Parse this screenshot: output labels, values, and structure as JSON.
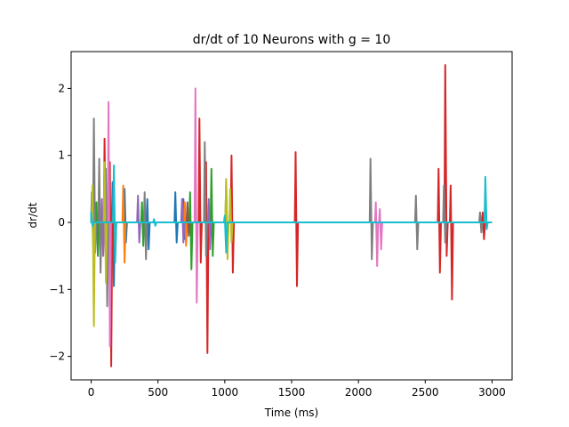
{
  "chart_data": {
    "type": "line",
    "title": "dr/dt of 10 Neurons with g = 10",
    "xlabel": "Time (ms)",
    "ylabel": "dr/dt",
    "xlim": [
      -150,
      3150
    ],
    "ylim": [
      -2.35,
      2.55
    ],
    "xticks": [
      0,
      500,
      1000,
      1500,
      2000,
      2500,
      3000
    ],
    "xtick_labels": [
      "0",
      "500",
      "1000",
      "1500",
      "2000",
      "2500",
      "3000"
    ],
    "yticks": [
      -2,
      -1,
      0,
      1,
      2
    ],
    "ytick_labels": [
      "−2",
      "−1",
      "0",
      "1",
      "2"
    ],
    "grid": false,
    "legend": "none",
    "series": [
      {
        "color": "#1f77b4",
        "bursts": [
          [
            5,
            0.45,
            -0.35
          ],
          [
            160,
            0.6,
            -0.95
          ],
          [
            250,
            0.5,
            -0.3
          ],
          [
            420,
            0.35,
            -0.4
          ],
          [
            630,
            0.45,
            -0.3
          ],
          [
            690,
            0.35,
            -0.25
          ]
        ]
      },
      {
        "color": "#ff7f0e",
        "bursts": [
          [
            10,
            0.5,
            -0.35
          ],
          [
            170,
            0.55,
            -0.5
          ],
          [
            240,
            0.55,
            -0.6
          ],
          [
            700,
            0.3,
            -0.35
          ]
        ]
      },
      {
        "color": "#2ca02c",
        "bursts": [
          [
            40,
            0.3,
            -0.5
          ],
          [
            380,
            0.3,
            -0.35
          ],
          [
            740,
            0.45,
            -0.7
          ],
          [
            900,
            0.8,
            -0.5
          ],
          [
            1010,
            0.6,
            -0.4
          ]
        ]
      },
      {
        "color": "#d62728",
        "bursts": [
          [
            100,
            1.25,
            -0.6
          ],
          [
            140,
            0.9,
            -2.15
          ],
          [
            810,
            1.55,
            -0.6
          ],
          [
            860,
            0.9,
            -1.95
          ],
          [
            1050,
            1.0,
            -0.75
          ],
          [
            1530,
            1.05,
            -0.95
          ],
          [
            2600,
            0.8,
            -0.75
          ],
          [
            2650,
            2.35,
            -0.5
          ],
          [
            2690,
            0.55,
            -1.15
          ],
          [
            2930,
            0.15,
            -0.25
          ]
        ]
      },
      {
        "color": "#9467bd",
        "bursts": [
          [
            80,
            0.35,
            -0.5
          ],
          [
            350,
            0.4,
            -0.3
          ],
          [
            680,
            0.35,
            -0.3
          ],
          [
            880,
            0.35,
            -0.4
          ]
        ]
      },
      {
        "color": "#8c564b",
        "bursts": [
          [
            20,
            0.3,
            -0.3
          ],
          [
            400,
            0.25,
            -0.3
          ],
          [
            720,
            0.3,
            -0.2
          ]
        ]
      },
      {
        "color": "#e377c2",
        "bursts": [
          [
            130,
            1.8,
            -1.85
          ],
          [
            780,
            2.0,
            -1.2
          ],
          [
            2130,
            0.3,
            -0.65
          ],
          [
            2160,
            0.2,
            -0.4
          ]
        ]
      },
      {
        "color": "#7f7f7f",
        "bursts": [
          [
            20,
            1.55,
            -0.45
          ],
          [
            60,
            0.95,
            -0.75
          ],
          [
            110,
            0.8,
            -1.25
          ],
          [
            400,
            0.45,
            -0.55
          ],
          [
            850,
            1.2,
            -0.5
          ],
          [
            2090,
            0.95,
            -0.55
          ],
          [
            2430,
            0.4,
            -0.4
          ],
          [
            2640,
            0.55,
            -0.3
          ],
          [
            2910,
            0.15,
            -0.15
          ]
        ]
      },
      {
        "color": "#bcbd22",
        "bursts": [
          [
            10,
            0.55,
            -1.55
          ],
          [
            100,
            0.9,
            -0.9
          ],
          [
            1010,
            0.65,
            -0.55
          ],
          [
            1040,
            0.5,
            -0.3
          ]
        ]
      },
      {
        "color": "#17becf",
        "bursts": [
          [
            0,
            0.15,
            -0.05
          ],
          [
            170,
            0.85,
            -0.6
          ],
          [
            470,
            0.05,
            -0.05
          ],
          [
            1000,
            0.1,
            -0.45
          ],
          [
            2950,
            0.68,
            -0.1
          ]
        ]
      }
    ]
  }
}
